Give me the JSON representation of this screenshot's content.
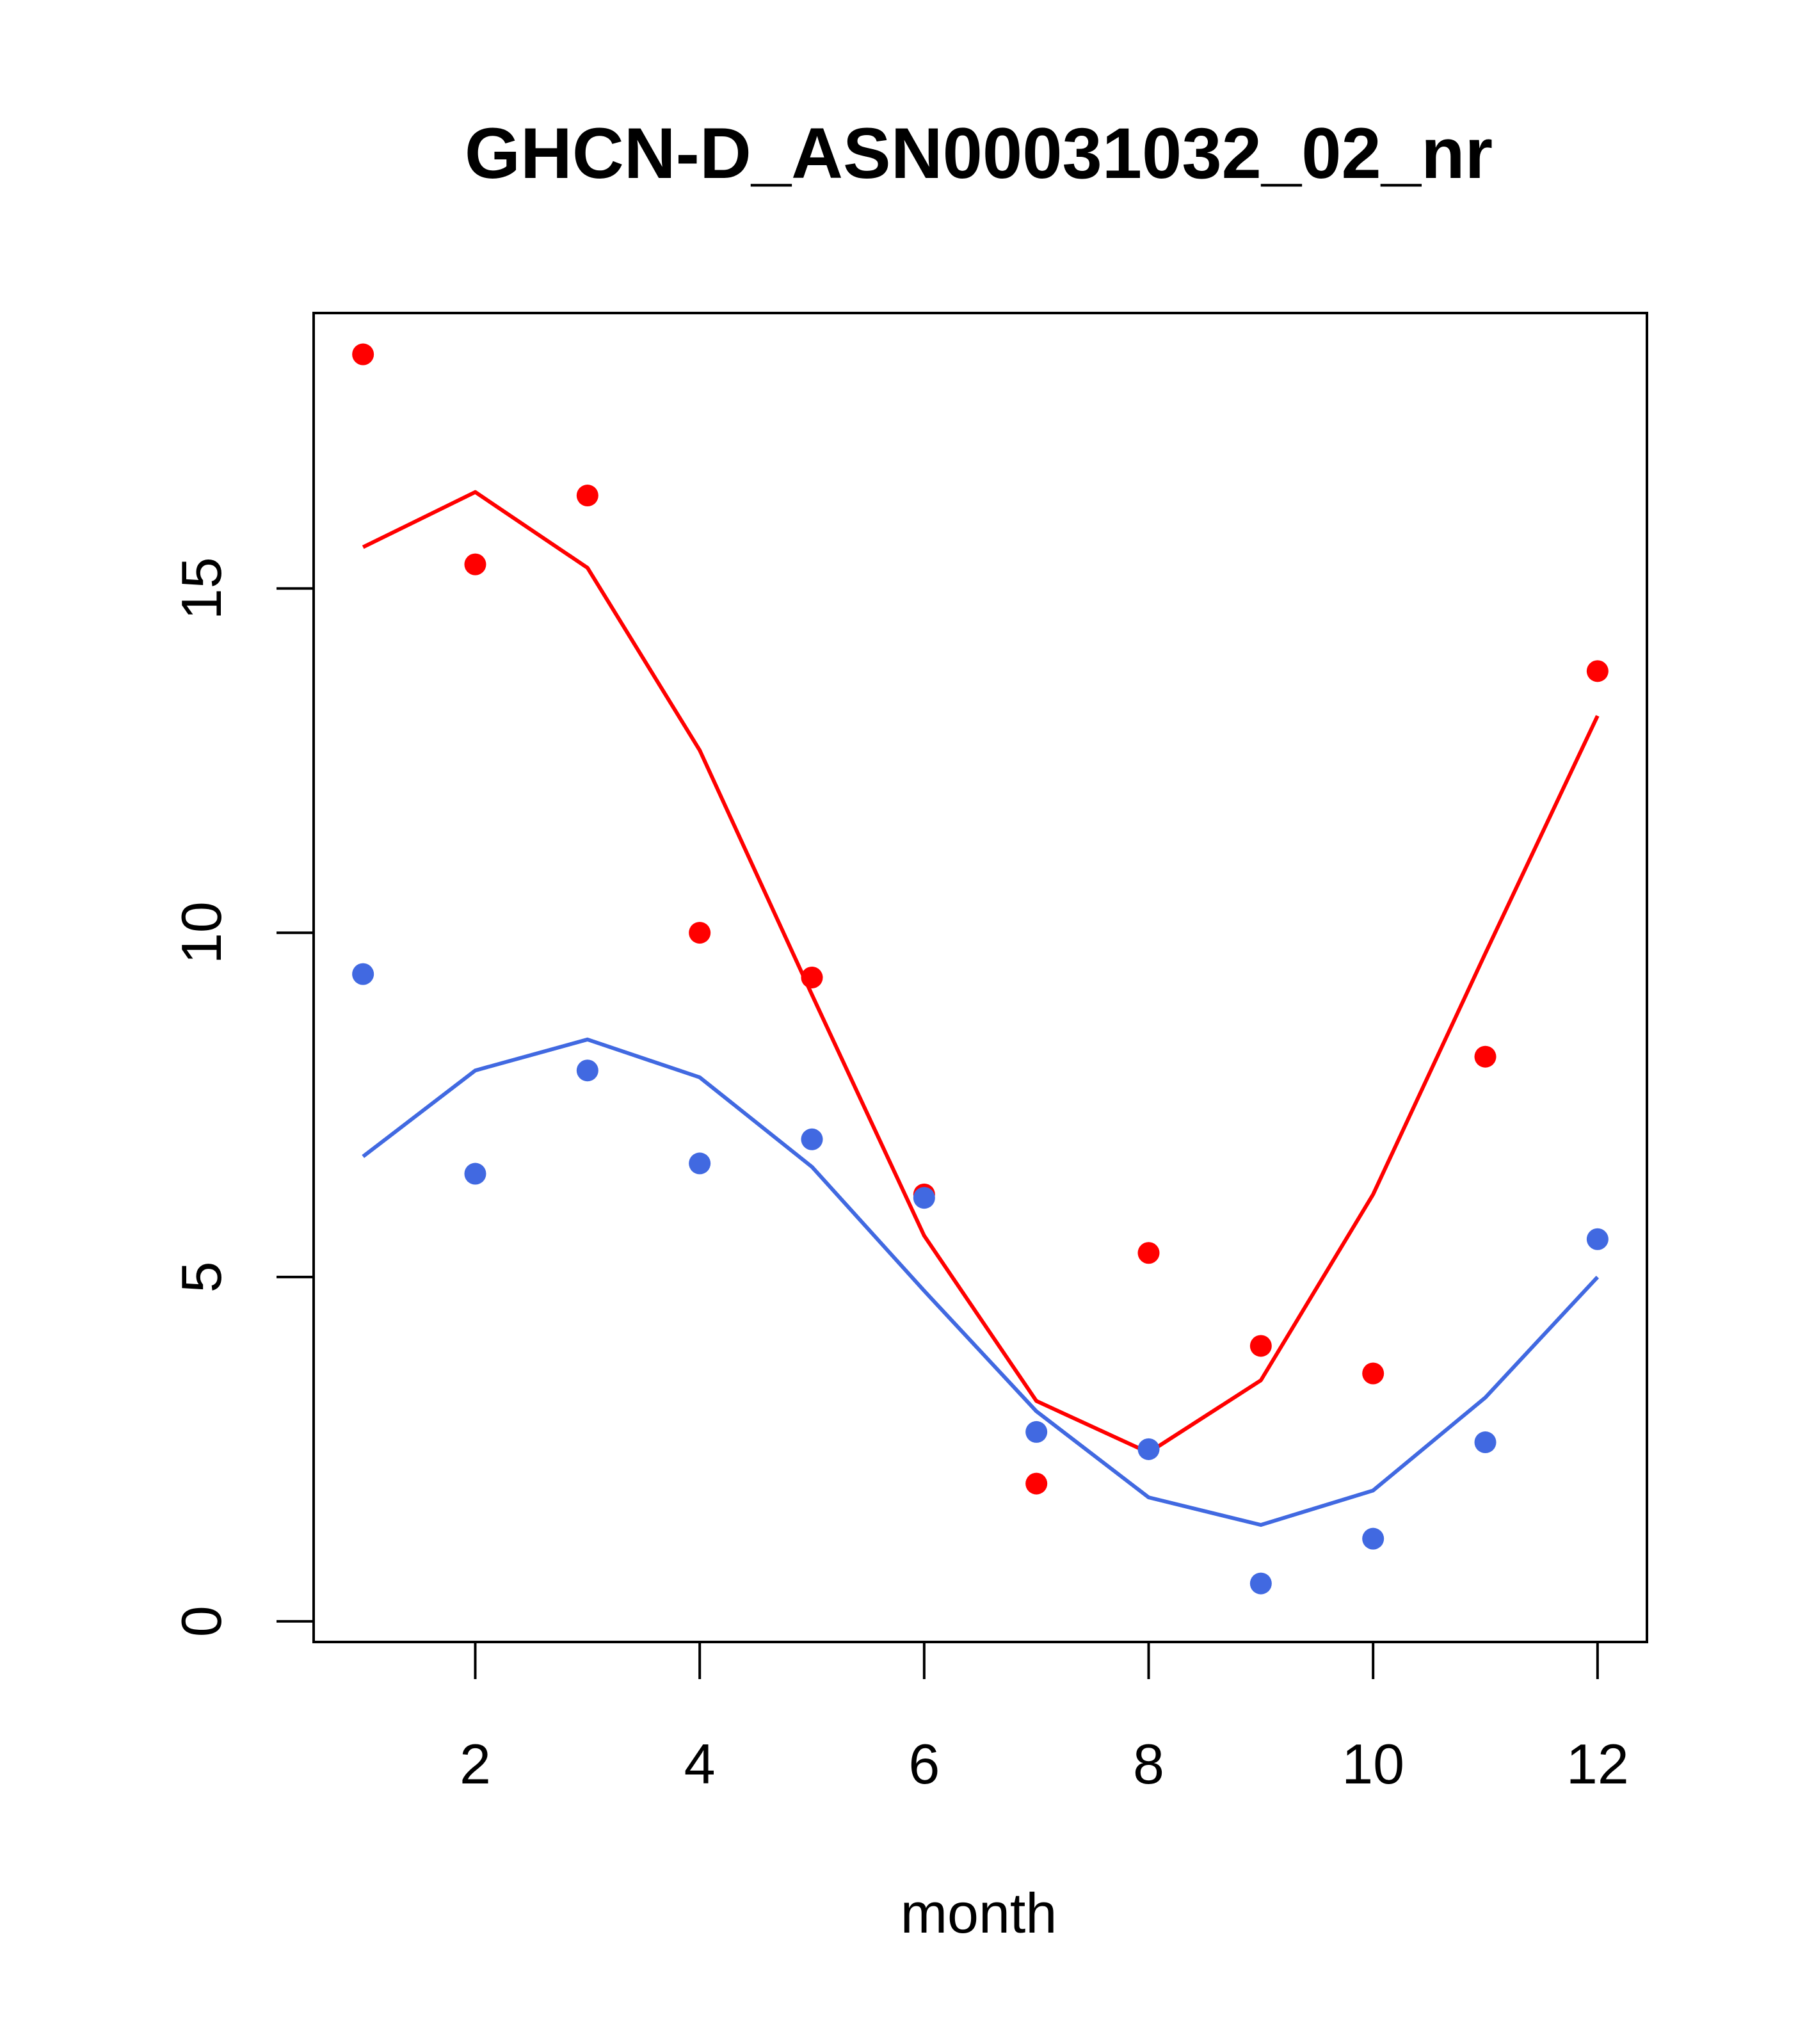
{
  "chart_data": {
    "type": "line",
    "title": "GHCN-D_ASN00031032_02_nr",
    "xlabel": "month",
    "ylabel": "",
    "xlim": [
      0.56,
      12.44
    ],
    "ylim": [
      -0.3,
      19.0
    ],
    "xticks": [
      2,
      4,
      6,
      8,
      10,
      12
    ],
    "yticks": [
      0,
      5,
      10,
      15
    ],
    "grid": false,
    "x": [
      1,
      2,
      3,
      4,
      5,
      6,
      7,
      8,
      9,
      10,
      11,
      12
    ],
    "series": [
      {
        "color": "#ff0000",
        "points": [
          18.4,
          15.35,
          16.35,
          10.0,
          9.35,
          6.2,
          2.0,
          5.35,
          4.0,
          3.6,
          8.2,
          13.8
        ],
        "line": [
          15.6,
          16.4,
          15.3,
          12.65,
          9.1,
          5.6,
          3.2,
          2.45,
          3.5,
          6.2,
          9.7,
          13.15
        ]
      },
      {
        "color": "#4169e1",
        "points": [
          9.4,
          6.5,
          8.0,
          6.65,
          7.0,
          6.15,
          2.75,
          2.5,
          0.55,
          1.2,
          2.6,
          5.55
        ],
        "line": [
          6.75,
          8.0,
          8.45,
          7.9,
          6.6,
          4.8,
          3.05,
          1.8,
          1.4,
          1.9,
          3.25,
          5.0
        ]
      }
    ]
  }
}
